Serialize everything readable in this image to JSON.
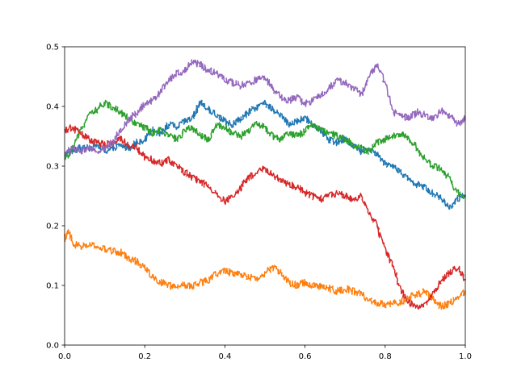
{
  "chart_data": {
    "type": "line",
    "title": "",
    "xlabel": "",
    "ylabel": "",
    "xlim": [
      0,
      1
    ],
    "ylim": [
      0,
      0.5
    ],
    "grid": false,
    "x_ticks": [
      "0.0",
      "0.2",
      "0.4",
      "0.6",
      "0.8",
      "1.0"
    ],
    "y_ticks": [
      "0.0",
      "0.1",
      "0.2",
      "0.3",
      "0.4",
      "0.5"
    ],
    "x_tick_values": [
      0,
      0.2,
      0.4,
      0.6,
      0.8,
      1.0
    ],
    "y_tick_values": [
      0,
      0.1,
      0.2,
      0.3,
      0.4,
      0.5
    ],
    "series": [
      {
        "color": "#1f77b4",
        "points": [
          [
            0,
            0.32
          ],
          [
            0.02,
            0.325
          ],
          [
            0.04,
            0.33
          ],
          [
            0.06,
            0.33
          ],
          [
            0.08,
            0.335
          ],
          [
            0.1,
            0.325
          ],
          [
            0.12,
            0.33
          ],
          [
            0.14,
            0.335
          ],
          [
            0.16,
            0.33
          ],
          [
            0.18,
            0.34
          ],
          [
            0.2,
            0.345
          ],
          [
            0.22,
            0.36
          ],
          [
            0.24,
            0.355
          ],
          [
            0.26,
            0.37
          ],
          [
            0.28,
            0.365
          ],
          [
            0.3,
            0.375
          ],
          [
            0.32,
            0.38
          ],
          [
            0.33,
            0.395
          ],
          [
            0.34,
            0.405
          ],
          [
            0.36,
            0.395
          ],
          [
            0.38,
            0.385
          ],
          [
            0.4,
            0.375
          ],
          [
            0.42,
            0.37
          ],
          [
            0.44,
            0.38
          ],
          [
            0.46,
            0.39
          ],
          [
            0.48,
            0.4
          ],
          [
            0.5,
            0.405
          ],
          [
            0.52,
            0.395
          ],
          [
            0.54,
            0.385
          ],
          [
            0.56,
            0.37
          ],
          [
            0.58,
            0.375
          ],
          [
            0.6,
            0.38
          ],
          [
            0.62,
            0.37
          ],
          [
            0.64,
            0.36
          ],
          [
            0.66,
            0.345
          ],
          [
            0.68,
            0.34
          ],
          [
            0.7,
            0.345
          ],
          [
            0.72,
            0.335
          ],
          [
            0.74,
            0.325
          ],
          [
            0.76,
            0.33
          ],
          [
            0.78,
            0.32
          ],
          [
            0.8,
            0.305
          ],
          [
            0.82,
            0.3
          ],
          [
            0.84,
            0.29
          ],
          [
            0.86,
            0.275
          ],
          [
            0.88,
            0.27
          ],
          [
            0.9,
            0.265
          ],
          [
            0.92,
            0.255
          ],
          [
            0.94,
            0.245
          ],
          [
            0.96,
            0.23
          ],
          [
            0.98,
            0.245
          ],
          [
            1.0,
            0.25
          ]
        ]
      },
      {
        "color": "#ff7f0e",
        "points": [
          [
            0,
            0.18
          ],
          [
            0.01,
            0.19
          ],
          [
            0.02,
            0.17
          ],
          [
            0.04,
            0.165
          ],
          [
            0.06,
            0.168
          ],
          [
            0.08,
            0.165
          ],
          [
            0.1,
            0.16
          ],
          [
            0.12,
            0.158
          ],
          [
            0.14,
            0.155
          ],
          [
            0.16,
            0.145
          ],
          [
            0.18,
            0.14
          ],
          [
            0.2,
            0.13
          ],
          [
            0.22,
            0.115
          ],
          [
            0.24,
            0.105
          ],
          [
            0.26,
            0.1
          ],
          [
            0.28,
            0.097
          ],
          [
            0.3,
            0.1
          ],
          [
            0.32,
            0.098
          ],
          [
            0.34,
            0.105
          ],
          [
            0.36,
            0.11
          ],
          [
            0.38,
            0.12
          ],
          [
            0.4,
            0.125
          ],
          [
            0.42,
            0.12
          ],
          [
            0.44,
            0.118
          ],
          [
            0.46,
            0.115
          ],
          [
            0.48,
            0.112
          ],
          [
            0.5,
            0.12
          ],
          [
            0.52,
            0.13
          ],
          [
            0.54,
            0.12
          ],
          [
            0.56,
            0.105
          ],
          [
            0.58,
            0.1
          ],
          [
            0.6,
            0.105
          ],
          [
            0.62,
            0.1
          ],
          [
            0.64,
            0.098
          ],
          [
            0.66,
            0.095
          ],
          [
            0.68,
            0.09
          ],
          [
            0.7,
            0.095
          ],
          [
            0.72,
            0.09
          ],
          [
            0.74,
            0.085
          ],
          [
            0.76,
            0.075
          ],
          [
            0.78,
            0.07
          ],
          [
            0.8,
            0.068
          ],
          [
            0.82,
            0.07
          ],
          [
            0.84,
            0.072
          ],
          [
            0.86,
            0.08
          ],
          [
            0.88,
            0.085
          ],
          [
            0.9,
            0.09
          ],
          [
            0.92,
            0.075
          ],
          [
            0.94,
            0.065
          ],
          [
            0.96,
            0.07
          ],
          [
            0.98,
            0.08
          ],
          [
            1.0,
            0.09
          ]
        ]
      },
      {
        "color": "#2ca02c",
        "points": [
          [
            0,
            0.31
          ],
          [
            0.02,
            0.33
          ],
          [
            0.04,
            0.36
          ],
          [
            0.06,
            0.385
          ],
          [
            0.08,
            0.395
          ],
          [
            0.1,
            0.405
          ],
          [
            0.12,
            0.4
          ],
          [
            0.14,
            0.39
          ],
          [
            0.16,
            0.38
          ],
          [
            0.18,
            0.37
          ],
          [
            0.2,
            0.365
          ],
          [
            0.22,
            0.355
          ],
          [
            0.24,
            0.36
          ],
          [
            0.26,
            0.35
          ],
          [
            0.28,
            0.345
          ],
          [
            0.3,
            0.36
          ],
          [
            0.32,
            0.365
          ],
          [
            0.34,
            0.35
          ],
          [
            0.36,
            0.345
          ],
          [
            0.38,
            0.37
          ],
          [
            0.4,
            0.365
          ],
          [
            0.42,
            0.355
          ],
          [
            0.44,
            0.35
          ],
          [
            0.46,
            0.36
          ],
          [
            0.48,
            0.37
          ],
          [
            0.5,
            0.365
          ],
          [
            0.52,
            0.35
          ],
          [
            0.54,
            0.345
          ],
          [
            0.56,
            0.355
          ],
          [
            0.58,
            0.35
          ],
          [
            0.6,
            0.36
          ],
          [
            0.62,
            0.37
          ],
          [
            0.64,
            0.36
          ],
          [
            0.66,
            0.355
          ],
          [
            0.68,
            0.35
          ],
          [
            0.7,
            0.345
          ],
          [
            0.72,
            0.335
          ],
          [
            0.74,
            0.33
          ],
          [
            0.76,
            0.325
          ],
          [
            0.78,
            0.34
          ],
          [
            0.8,
            0.345
          ],
          [
            0.82,
            0.35
          ],
          [
            0.84,
            0.355
          ],
          [
            0.86,
            0.345
          ],
          [
            0.88,
            0.33
          ],
          [
            0.9,
            0.31
          ],
          [
            0.92,
            0.3
          ],
          [
            0.94,
            0.295
          ],
          [
            0.96,
            0.28
          ],
          [
            0.98,
            0.255
          ],
          [
            1.0,
            0.25
          ]
        ]
      },
      {
        "color": "#d62728",
        "points": [
          [
            0,
            0.36
          ],
          [
            0.02,
            0.365
          ],
          [
            0.04,
            0.355
          ],
          [
            0.06,
            0.345
          ],
          [
            0.08,
            0.34
          ],
          [
            0.1,
            0.335
          ],
          [
            0.12,
            0.34
          ],
          [
            0.14,
            0.345
          ],
          [
            0.16,
            0.335
          ],
          [
            0.18,
            0.33
          ],
          [
            0.2,
            0.315
          ],
          [
            0.22,
            0.31
          ],
          [
            0.24,
            0.305
          ],
          [
            0.26,
            0.31
          ],
          [
            0.28,
            0.3
          ],
          [
            0.3,
            0.29
          ],
          [
            0.32,
            0.28
          ],
          [
            0.34,
            0.275
          ],
          [
            0.36,
            0.265
          ],
          [
            0.38,
            0.255
          ],
          [
            0.4,
            0.24
          ],
          [
            0.42,
            0.25
          ],
          [
            0.44,
            0.265
          ],
          [
            0.46,
            0.28
          ],
          [
            0.48,
            0.29
          ],
          [
            0.5,
            0.295
          ],
          [
            0.52,
            0.285
          ],
          [
            0.54,
            0.275
          ],
          [
            0.56,
            0.27
          ],
          [
            0.58,
            0.265
          ],
          [
            0.6,
            0.255
          ],
          [
            0.62,
            0.25
          ],
          [
            0.64,
            0.245
          ],
          [
            0.66,
            0.25
          ],
          [
            0.68,
            0.255
          ],
          [
            0.7,
            0.25
          ],
          [
            0.72,
            0.245
          ],
          [
            0.74,
            0.25
          ],
          [
            0.76,
            0.22
          ],
          [
            0.78,
            0.2
          ],
          [
            0.8,
            0.16
          ],
          [
            0.82,
            0.13
          ],
          [
            0.84,
            0.09
          ],
          [
            0.86,
            0.07
          ],
          [
            0.88,
            0.065
          ],
          [
            0.9,
            0.07
          ],
          [
            0.92,
            0.085
          ],
          [
            0.94,
            0.11
          ],
          [
            0.96,
            0.12
          ],
          [
            0.98,
            0.13
          ],
          [
            1.0,
            0.11
          ]
        ]
      },
      {
        "color": "#9467bd",
        "points": [
          [
            0,
            0.32
          ],
          [
            0.02,
            0.33
          ],
          [
            0.04,
            0.325
          ],
          [
            0.06,
            0.33
          ],
          [
            0.08,
            0.325
          ],
          [
            0.1,
            0.33
          ],
          [
            0.12,
            0.34
          ],
          [
            0.14,
            0.36
          ],
          [
            0.16,
            0.38
          ],
          [
            0.18,
            0.39
          ],
          [
            0.2,
            0.405
          ],
          [
            0.22,
            0.41
          ],
          [
            0.24,
            0.425
          ],
          [
            0.26,
            0.445
          ],
          [
            0.28,
            0.455
          ],
          [
            0.3,
            0.46
          ],
          [
            0.32,
            0.475
          ],
          [
            0.34,
            0.47
          ],
          [
            0.36,
            0.46
          ],
          [
            0.38,
            0.455
          ],
          [
            0.4,
            0.445
          ],
          [
            0.42,
            0.44
          ],
          [
            0.44,
            0.435
          ],
          [
            0.46,
            0.44
          ],
          [
            0.48,
            0.445
          ],
          [
            0.5,
            0.45
          ],
          [
            0.52,
            0.43
          ],
          [
            0.54,
            0.415
          ],
          [
            0.56,
            0.41
          ],
          [
            0.58,
            0.415
          ],
          [
            0.6,
            0.405
          ],
          [
            0.62,
            0.41
          ],
          [
            0.64,
            0.42
          ],
          [
            0.66,
            0.43
          ],
          [
            0.68,
            0.445
          ],
          [
            0.7,
            0.44
          ],
          [
            0.72,
            0.43
          ],
          [
            0.74,
            0.42
          ],
          [
            0.76,
            0.45
          ],
          [
            0.78,
            0.47
          ],
          [
            0.8,
            0.44
          ],
          [
            0.82,
            0.39
          ],
          [
            0.84,
            0.385
          ],
          [
            0.86,
            0.38
          ],
          [
            0.88,
            0.39
          ],
          [
            0.9,
            0.385
          ],
          [
            0.92,
            0.38
          ],
          [
            0.94,
            0.395
          ],
          [
            0.96,
            0.385
          ],
          [
            0.98,
            0.37
          ],
          [
            1.0,
            0.38
          ]
        ]
      }
    ]
  }
}
